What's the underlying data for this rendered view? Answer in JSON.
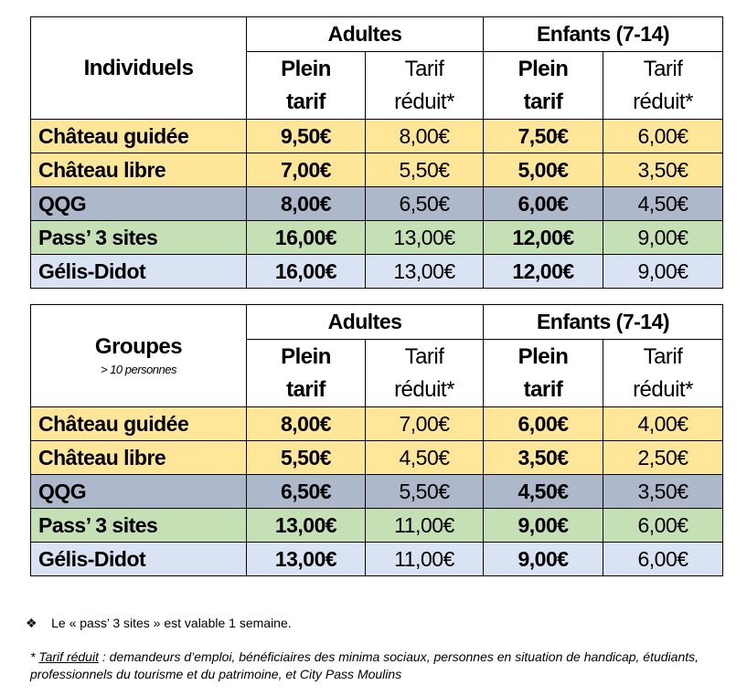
{
  "colors": {
    "yellow": "#FFE699",
    "grey": "#ADB9CA",
    "green": "#C5E0B4",
    "blue": "#DAE3F3"
  },
  "headers": {
    "adultes": "Adultes",
    "enfants": "Enfants (7-14)",
    "plein_1": "Plein",
    "plein_2": "tarif",
    "reduit_1": "Tarif",
    "reduit_2": "réduit*"
  },
  "tables": [
    {
      "title": "Individuels",
      "note": "",
      "rows": [
        {
          "label": "Château guidée",
          "color": "yellow",
          "values": [
            "9,50€",
            "8,00€",
            "7,50€",
            "6,00€"
          ]
        },
        {
          "label": "Château libre",
          "color": "yellow",
          "values": [
            "7,00€",
            "5,50€",
            "5,00€",
            "3,50€"
          ]
        },
        {
          "label": "QQG",
          "color": "grey",
          "values": [
            "8,00€",
            "6,50€",
            "6,00€",
            "4,50€"
          ]
        },
        {
          "label": "Pass’ 3 sites",
          "color": "green",
          "values": [
            "16,00€",
            "13,00€",
            "12,00€",
            "9,00€"
          ]
        },
        {
          "label": "Gélis-Didot",
          "color": "blue",
          "values": [
            "16,00€",
            "13,00€",
            "12,00€",
            "9,00€"
          ]
        }
      ]
    },
    {
      "title": "Groupes",
      "note": "> 10 personnes",
      "rows": [
        {
          "label": "Château guidée",
          "color": "yellow",
          "values": [
            "8,00€",
            "7,00€",
            "6,00€",
            "4,00€"
          ]
        },
        {
          "label": "Château libre",
          "color": "yellow",
          "values": [
            "5,50€",
            "4,50€",
            "3,50€",
            "2,50€"
          ]
        },
        {
          "label": "QQG",
          "color": "grey",
          "values": [
            "6,50€",
            "5,50€",
            "4,50€",
            "3,50€"
          ]
        },
        {
          "label": "Pass’ 3 sites",
          "color": "green",
          "values": [
            "13,00€",
            "11,00€",
            "9,00€",
            "6,00€"
          ]
        },
        {
          "label": "Gélis-Didot",
          "color": "blue",
          "values": [
            "13,00€",
            "11,00€",
            "9,00€",
            "6,00€"
          ]
        }
      ]
    }
  ],
  "bullet": {
    "icon": "diamond-bullet-icon",
    "symbol": "❖",
    "text": "Le « pass’ 3 sites » est valable 1 semaine."
  },
  "footnote": {
    "star": "* ",
    "term": "Tarif réduit",
    "text": " : demandeurs d’emploi, bénéficiaires des minima sociaux, personnes en situation de handicap, étudiants, professionnels du tourisme et du patrimoine, et City Pass Moulins"
  }
}
